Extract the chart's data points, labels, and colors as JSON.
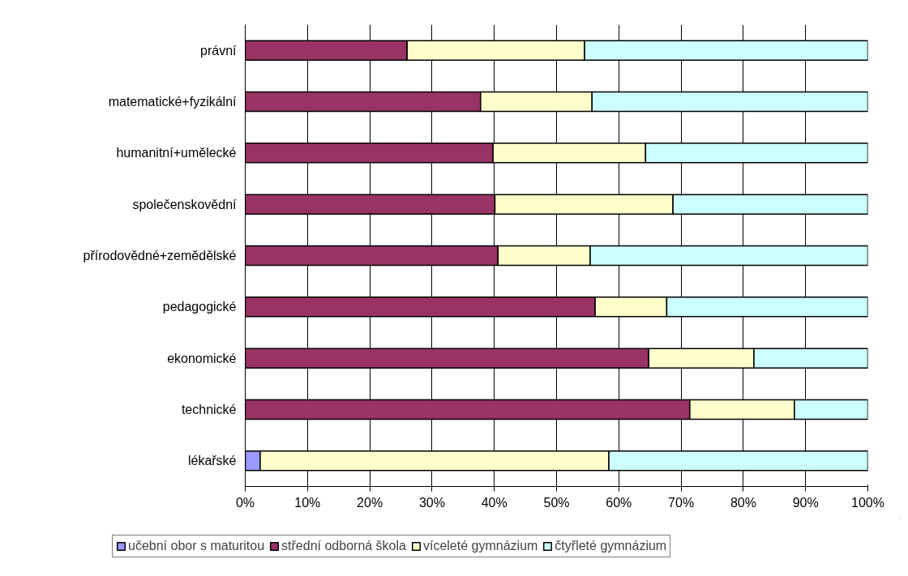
{
  "chart_data": {
    "type": "bar",
    "orientation": "horizontal",
    "stacked": true,
    "categories": [
      "právní",
      "matematické+fyzikální",
      "humanitní+umělecké",
      "společenskovědní",
      "přírodovědné+zemědělské",
      "pedagogické",
      "ekonomické",
      "technické",
      "lékařské"
    ],
    "series": [
      {
        "name": "učební obor s maturitou",
        "color": "#9999ff",
        "values": [
          null,
          null,
          null,
          null,
          null,
          null,
          null,
          null,
          2.4
        ]
      },
      {
        "name": "střední odborná škola",
        "color": "#993366",
        "values": [
          26.0,
          37.8,
          39.8,
          40.1,
          40.6,
          56.2,
          64.8,
          71.4,
          null
        ]
      },
      {
        "name": "víceleté gymnázium",
        "color": "#ffffcc",
        "values": [
          28.5,
          17.9,
          24.5,
          28.6,
          14.8,
          11.5,
          16.9,
          16.8,
          56.0
        ]
      },
      {
        "name": "čtyřleté gymnázium",
        "color": "#ccffff",
        "values": [
          45.5,
          44.3,
          35.7,
          31.3,
          44.6,
          32.3,
          18.3,
          11.8,
          41.6
        ]
      }
    ],
    "xlim": [
      0,
      100
    ],
    "xticks": [
      {
        "value": 0,
        "label": "0%"
      },
      {
        "value": 10,
        "label": "10%"
      },
      {
        "value": 20,
        "label": "20%"
      },
      {
        "value": 30,
        "label": "30%"
      },
      {
        "value": 40,
        "label": "40%"
      },
      {
        "value": 50,
        "label": "50%"
      },
      {
        "value": 60,
        "label": "60%"
      },
      {
        "value": 70,
        "label": "70%"
      },
      {
        "value": 80,
        "label": "80%"
      },
      {
        "value": 90,
        "label": "90%"
      },
      {
        "value": 100,
        "label": "100%"
      }
    ],
    "grid": "x",
    "legend": "bottom"
  }
}
